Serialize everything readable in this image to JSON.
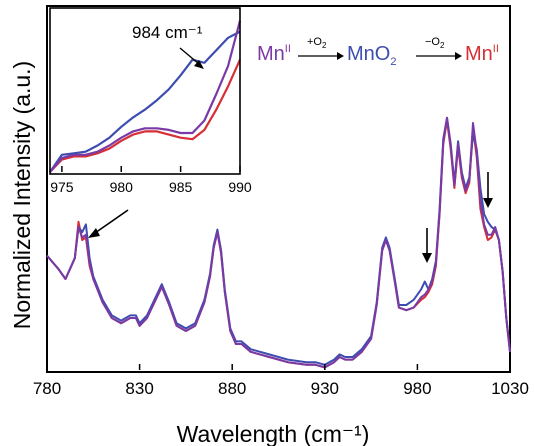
{
  "chart_data": [
    {
      "id": "main",
      "type": "line",
      "xlabel": "Wavelength (cm⁻¹)",
      "ylabel": "Normalized Intensity (a.u.)",
      "xlim": [
        780,
        1030
      ],
      "ylim": [
        0,
        1
      ],
      "xticks": [
        "780",
        "830",
        "880",
        "930",
        "980",
        "1030"
      ],
      "grid": false,
      "series": [
        {
          "color": "#d62f35",
          "x": [
            780,
            786,
            790,
            795,
            797,
            799,
            801,
            803,
            805,
            810,
            815,
            820,
            825,
            828,
            830,
            834,
            838,
            842,
            846,
            850,
            855,
            860,
            865,
            868,
            870,
            872,
            874,
            876,
            879,
            882,
            885,
            890,
            900,
            910,
            920,
            925,
            930,
            935,
            938,
            941,
            945,
            950,
            955,
            958,
            961,
            963,
            965,
            968,
            970,
            974,
            978,
            982,
            984,
            986,
            988,
            990,
            992,
            994,
            996,
            998,
            1000,
            1002,
            1004,
            1006,
            1008,
            1010,
            1012,
            1014,
            1016,
            1018,
            1020,
            1022,
            1024,
            1026,
            1028,
            1030
          ],
          "y": [
            0.44,
            0.39,
            0.35,
            0.43,
            0.57,
            0.5,
            0.51,
            0.4,
            0.35,
            0.26,
            0.2,
            0.18,
            0.2,
            0.2,
            0.17,
            0.2,
            0.26,
            0.32,
            0.25,
            0.17,
            0.15,
            0.17,
            0.26,
            0.36,
            0.47,
            0.53,
            0.45,
            0.3,
            0.15,
            0.1,
            0.1,
            0.07,
            0.05,
            0.03,
            0.02,
            0.02,
            0.01,
            0.03,
            0.05,
            0.04,
            0.04,
            0.07,
            0.12,
            0.25,
            0.46,
            0.5,
            0.46,
            0.33,
            0.24,
            0.23,
            0.24,
            0.27,
            0.28,
            0.3,
            0.33,
            0.4,
            0.6,
            0.87,
            0.96,
            0.85,
            0.7,
            0.86,
            0.74,
            0.68,
            0.72,
            0.93,
            0.82,
            0.62,
            0.55,
            0.5,
            0.51,
            0.54,
            0.5,
            0.38,
            0.2,
            0.07
          ]
        },
        {
          "color": "#3d4db0",
          "x": [
            780,
            786,
            790,
            795,
            797,
            799,
            801,
            803,
            805,
            810,
            815,
            820,
            825,
            828,
            830,
            834,
            838,
            842,
            846,
            850,
            855,
            860,
            865,
            868,
            870,
            872,
            874,
            876,
            879,
            882,
            885,
            890,
            900,
            910,
            920,
            925,
            930,
            935,
            938,
            941,
            945,
            950,
            955,
            958,
            961,
            963,
            965,
            968,
            970,
            974,
            978,
            982,
            984,
            986,
            988,
            990,
            992,
            994,
            996,
            998,
            1000,
            1002,
            1004,
            1006,
            1008,
            1010,
            1012,
            1014,
            1016,
            1018,
            1020,
            1022,
            1024,
            1026,
            1028,
            1030
          ],
          "y": [
            0.44,
            0.39,
            0.35,
            0.43,
            0.55,
            0.53,
            0.56,
            0.43,
            0.36,
            0.27,
            0.21,
            0.19,
            0.21,
            0.21,
            0.18,
            0.21,
            0.27,
            0.33,
            0.26,
            0.18,
            0.16,
            0.18,
            0.27,
            0.37,
            0.48,
            0.54,
            0.46,
            0.31,
            0.16,
            0.11,
            0.11,
            0.08,
            0.06,
            0.04,
            0.03,
            0.03,
            0.02,
            0.04,
            0.06,
            0.05,
            0.05,
            0.08,
            0.13,
            0.26,
            0.47,
            0.51,
            0.47,
            0.34,
            0.25,
            0.25,
            0.27,
            0.31,
            0.34,
            0.31,
            0.35,
            0.42,
            0.62,
            0.89,
            0.97,
            0.87,
            0.72,
            0.88,
            0.76,
            0.7,
            0.74,
            0.91,
            0.85,
            0.7,
            0.6,
            0.57,
            0.55,
            0.54,
            0.5,
            0.38,
            0.2,
            0.07
          ]
        },
        {
          "color": "#7a3aa6",
          "x": [
            780,
            786,
            790,
            795,
            797,
            799,
            801,
            803,
            805,
            810,
            815,
            820,
            825,
            828,
            830,
            834,
            838,
            842,
            846,
            850,
            855,
            860,
            865,
            868,
            870,
            872,
            874,
            876,
            879,
            882,
            885,
            890,
            900,
            910,
            920,
            925,
            930,
            935,
            938,
            941,
            945,
            950,
            955,
            958,
            961,
            963,
            965,
            968,
            970,
            974,
            978,
            982,
            984,
            986,
            988,
            990,
            992,
            994,
            996,
            998,
            1000,
            1002,
            1004,
            1006,
            1008,
            1010,
            1012,
            1014,
            1016,
            1018,
            1020,
            1022,
            1024,
            1026,
            1028,
            1030
          ],
          "y": [
            0.44,
            0.39,
            0.35,
            0.43,
            0.55,
            0.51,
            0.52,
            0.41,
            0.35,
            0.26,
            0.2,
            0.18,
            0.2,
            0.2,
            0.17,
            0.2,
            0.26,
            0.32,
            0.25,
            0.17,
            0.15,
            0.17,
            0.26,
            0.36,
            0.47,
            0.53,
            0.45,
            0.3,
            0.15,
            0.1,
            0.1,
            0.07,
            0.05,
            0.03,
            0.02,
            0.02,
            0.01,
            0.03,
            0.05,
            0.04,
            0.04,
            0.07,
            0.12,
            0.25,
            0.46,
            0.5,
            0.46,
            0.33,
            0.24,
            0.23,
            0.24,
            0.28,
            0.29,
            0.31,
            0.34,
            0.41,
            0.61,
            0.88,
            0.97,
            0.86,
            0.71,
            0.87,
            0.75,
            0.69,
            0.73,
            0.95,
            0.84,
            0.65,
            0.56,
            0.52,
            0.52,
            0.55,
            0.5,
            0.38,
            0.2,
            0.07
          ]
        }
      ]
    },
    {
      "id": "inset",
      "type": "line",
      "xlim": [
        974,
        990
      ],
      "ylim": [
        0,
        1
      ],
      "xticks": [
        "975",
        "980",
        "985",
        "990"
      ],
      "annotation": "984 cm⁻¹",
      "series": [
        {
          "color": "#d62f35",
          "x": [
            974,
            975,
            976,
            977,
            978,
            979,
            980,
            981,
            982,
            983,
            984,
            985,
            986,
            987,
            988,
            989,
            990
          ],
          "y": [
            0.0,
            0.08,
            0.1,
            0.1,
            0.12,
            0.15,
            0.2,
            0.24,
            0.26,
            0.26,
            0.24,
            0.22,
            0.21,
            0.27,
            0.4,
            0.55,
            0.72
          ]
        },
        {
          "color": "#3d4db0",
          "x": [
            974,
            975,
            976,
            977,
            978,
            979,
            980,
            981,
            982,
            983,
            984,
            985,
            986,
            987,
            988,
            989,
            990
          ],
          "y": [
            0.0,
            0.11,
            0.12,
            0.13,
            0.17,
            0.22,
            0.29,
            0.35,
            0.4,
            0.46,
            0.53,
            0.62,
            0.72,
            0.7,
            0.78,
            0.86,
            0.9
          ]
        },
        {
          "color": "#7a3aa6",
          "x": [
            974,
            975,
            976,
            977,
            978,
            979,
            980,
            981,
            982,
            983,
            984,
            985,
            986,
            987,
            988,
            989,
            990
          ],
          "y": [
            0.0,
            0.09,
            0.11,
            0.11,
            0.13,
            0.17,
            0.22,
            0.26,
            0.28,
            0.28,
            0.27,
            0.25,
            0.25,
            0.33,
            0.5,
            0.68,
            0.97
          ]
        }
      ]
    }
  ],
  "scheme": {
    "mn_a": "Mn",
    "mn_a_sup": "II",
    "arrow1_label": "+O",
    "arrow1_sub": "2",
    "mno": "MnO",
    "mno_sub": "2",
    "arrow2_label": "−O",
    "arrow2_sub": "2",
    "mn_b": "Mn",
    "mn_b_sup": "II",
    "color_purple": "#7a3aa6",
    "color_blue": "#3d4db0",
    "color_red": "#d62f35"
  }
}
